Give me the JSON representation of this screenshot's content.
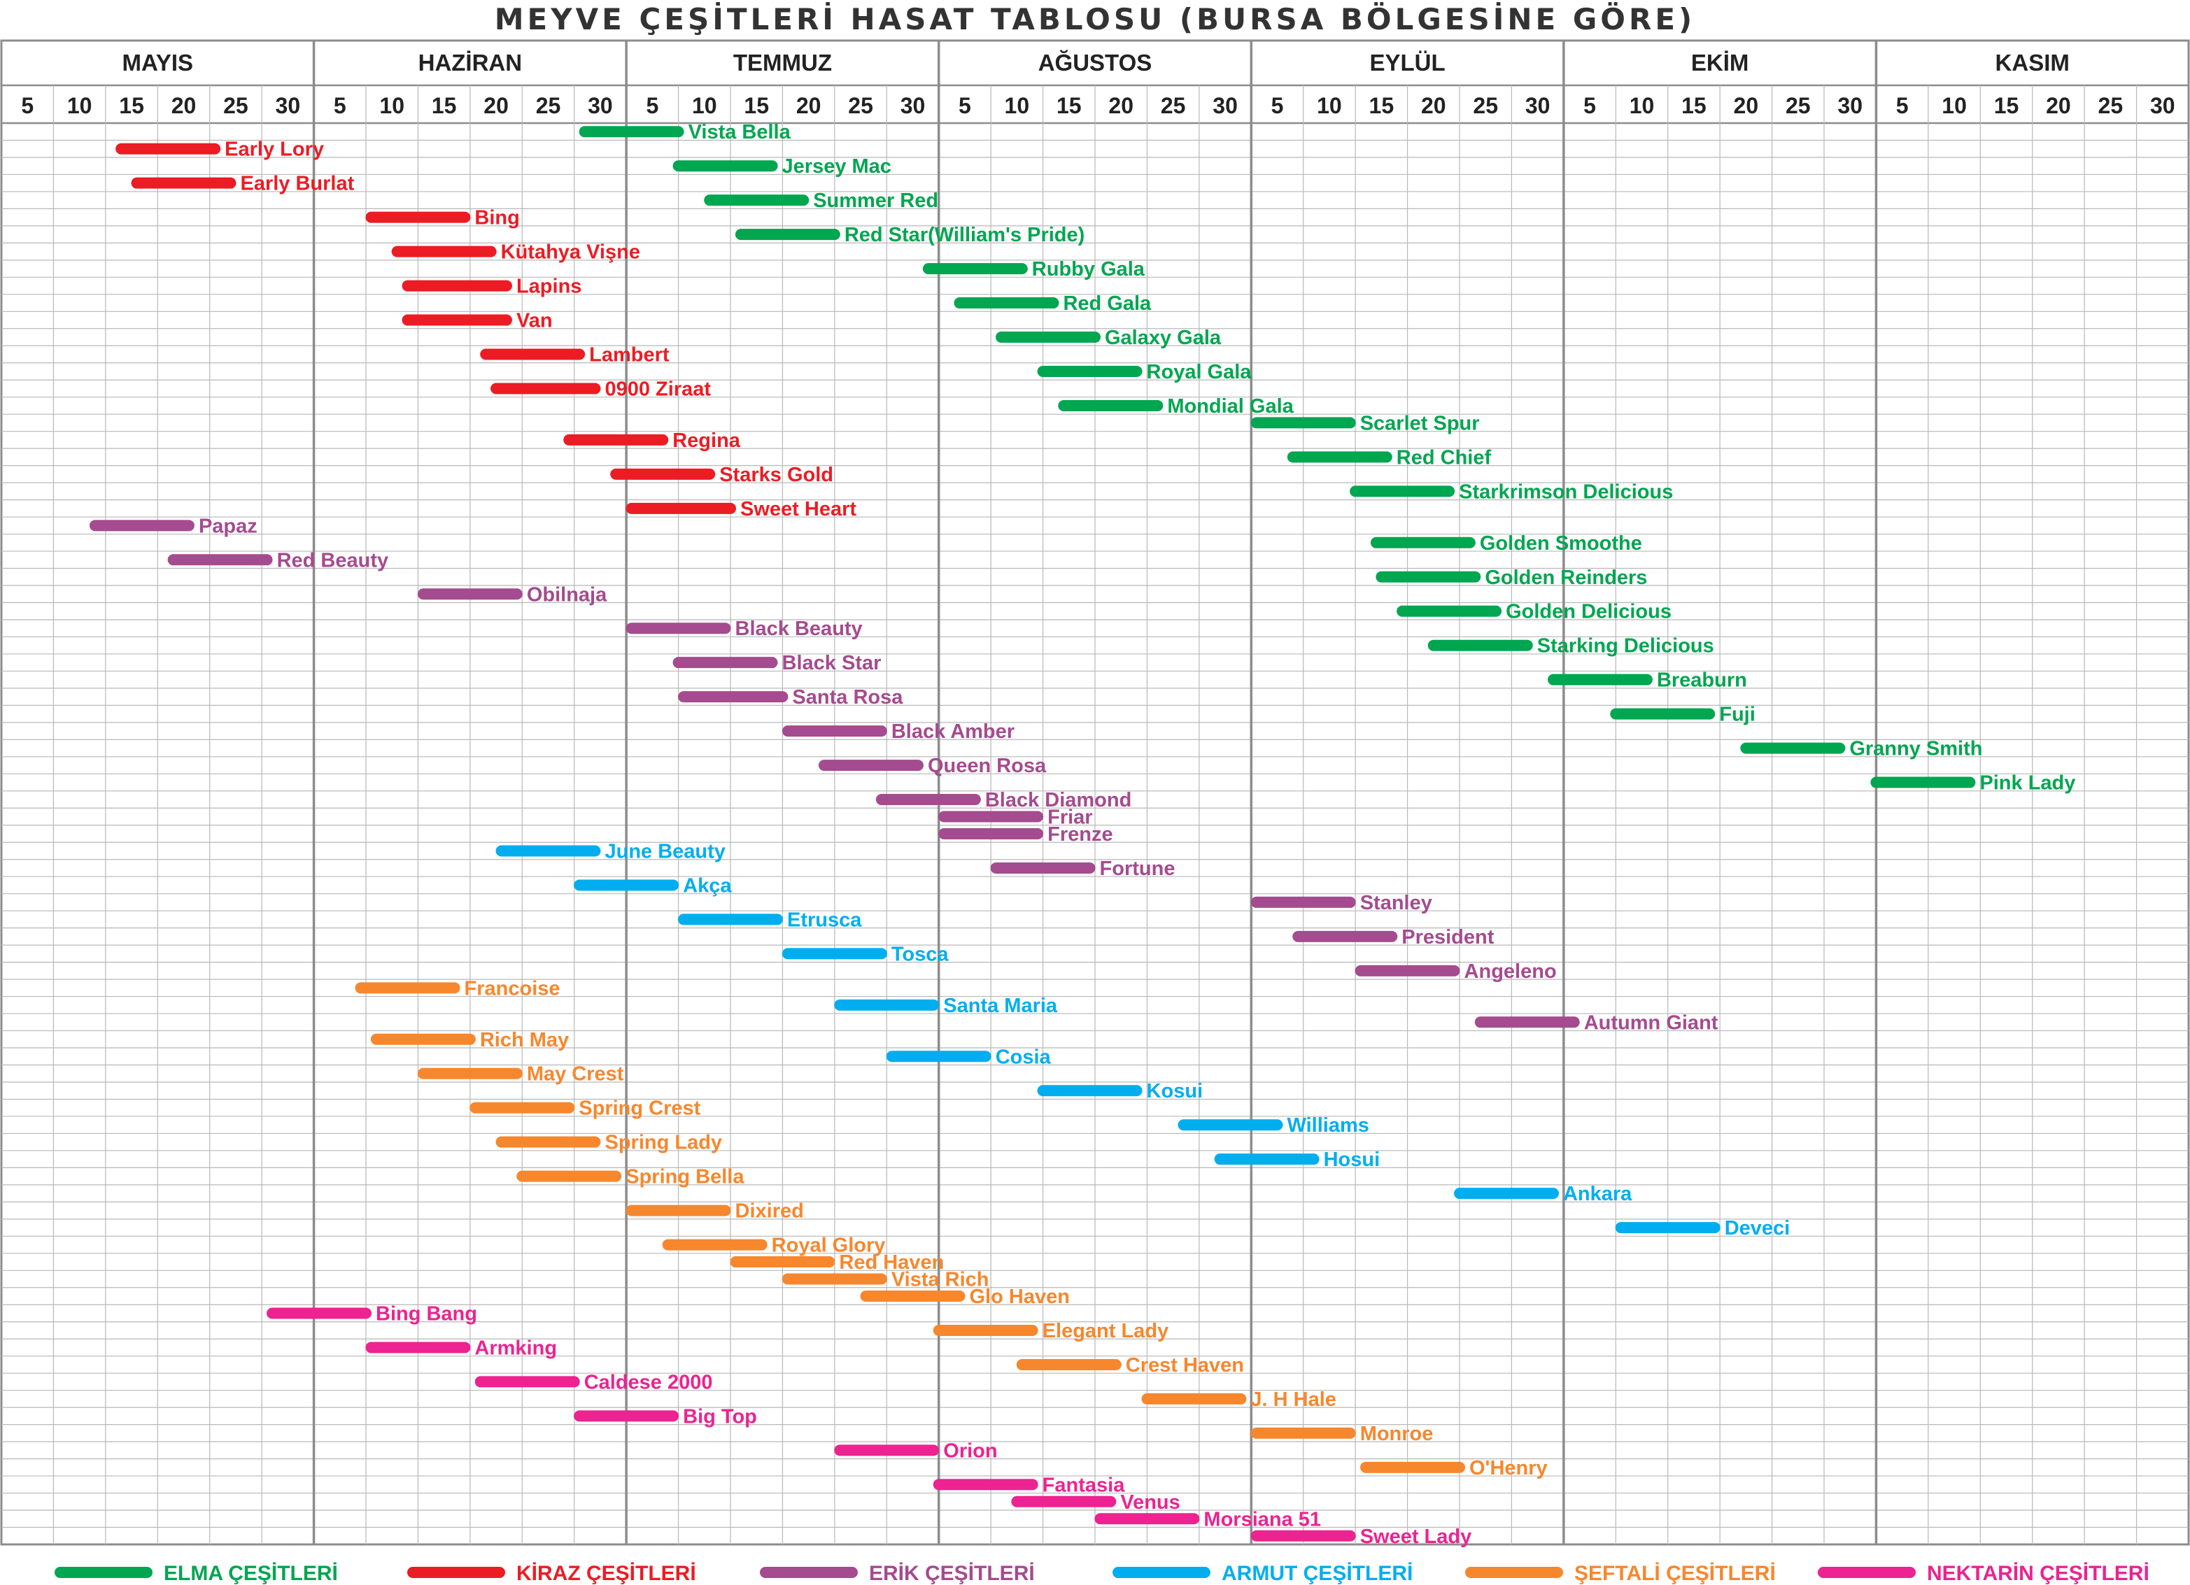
{
  "title": "MEYVE ÇEŞİTLERİ HASAT TABLOSU (BURSA BÖLGESİNE GÖRE)",
  "chart_data": {
    "type": "gantt",
    "title": "MEYVE ÇEŞİTLERİ HASAT TABLOSU (BURSA BÖLGESİNE GÖRE)",
    "months": [
      "MAYIS",
      "HAZİRAN",
      "TEMMUZ",
      "AĞUSTOS",
      "EYLÜL",
      "EKİM",
      "KASIM"
    ],
    "day_ticks": [
      "5",
      "10",
      "15",
      "20",
      "25",
      "30"
    ],
    "grid": true,
    "legend_position": "bottom",
    "categories": [
      {
        "key": "elma",
        "label": "ELMA ÇEŞİTLERİ",
        "color": "#00a650"
      },
      {
        "key": "kiraz",
        "label": "KİRAZ ÇEŞİTLERİ",
        "color": "#ec1c24"
      },
      {
        "key": "erik",
        "label": "ERİK ÇEŞİTLERİ",
        "color": "#a54b8f"
      },
      {
        "key": "armut",
        "label": "ARMUT ÇEŞİTLERİ",
        "color": "#00aeef"
      },
      {
        "key": "seftali",
        "label": "ŞEFTALİ ÇEŞİTLERİ",
        "color": "#f7872d"
      },
      {
        "key": "nektarin",
        "label": "NEKTARİN ÇEŞİTLERİ",
        "color": "#ec2391"
      }
    ],
    "varieties": [
      {
        "name": "Vista Bella",
        "cat": "elma",
        "start": 11.2,
        "end": 13.0
      },
      {
        "name": "Early Lory",
        "cat": "kiraz",
        "start": 2.3,
        "end": 4.1
      },
      {
        "name": "Jersey Mac",
        "cat": "elma",
        "start": 13.0,
        "end": 14.8
      },
      {
        "name": "Early Burlat",
        "cat": "kiraz",
        "start": 2.6,
        "end": 4.4
      },
      {
        "name": "Summer Red",
        "cat": "elma",
        "start": 13.6,
        "end": 15.4
      },
      {
        "name": "Bing",
        "cat": "kiraz",
        "start": 7.1,
        "end": 8.9
      },
      {
        "name": "Red Star(William's Pride)",
        "cat": "elma",
        "start": 14.2,
        "end": 16.0
      },
      {
        "name": "Kütahya Vişne",
        "cat": "kiraz",
        "start": 7.6,
        "end": 9.4
      },
      {
        "name": "Rubby Gala",
        "cat": "elma",
        "start": 17.8,
        "end": 19.6
      },
      {
        "name": "Lapins",
        "cat": "kiraz",
        "start": 7.8,
        "end": 9.7
      },
      {
        "name": "Red Gala",
        "cat": "elma",
        "start": 18.4,
        "end": 20.2
      },
      {
        "name": "Van",
        "cat": "kiraz",
        "start": 7.8,
        "end": 9.7
      },
      {
        "name": "Galaxy Gala",
        "cat": "elma",
        "start": 19.2,
        "end": 21.0
      },
      {
        "name": "Lambert",
        "cat": "kiraz",
        "start": 9.3,
        "end": 11.1
      },
      {
        "name": "Royal Gala",
        "cat": "elma",
        "start": 20.0,
        "end": 21.8
      },
      {
        "name": "0900 Ziraat",
        "cat": "kiraz",
        "start": 9.5,
        "end": 11.4
      },
      {
        "name": "Mondial Gala",
        "cat": "elma",
        "start": 20.4,
        "end": 22.2
      },
      {
        "name": "Scarlet Spur",
        "cat": "elma",
        "start": 24.1,
        "end": 25.9
      },
      {
        "name": "Regina",
        "cat": "kiraz",
        "start": 10.9,
        "end": 12.7
      },
      {
        "name": "Red Chief",
        "cat": "elma",
        "start": 24.8,
        "end": 26.6
      },
      {
        "name": "Starks Gold",
        "cat": "kiraz",
        "start": 11.8,
        "end": 13.6
      },
      {
        "name": "Starkrimson Delicious",
        "cat": "elma",
        "start": 26.0,
        "end": 27.8
      },
      {
        "name": "Sweet Heart",
        "cat": "kiraz",
        "start": 12.1,
        "end": 14.0
      },
      {
        "name": "Papaz",
        "cat": "erik",
        "start": 1.8,
        "end": 3.6
      },
      {
        "name": "Golden Smoothe",
        "cat": "elma",
        "start": 26.4,
        "end": 28.2
      },
      {
        "name": "Red Beauty",
        "cat": "erik",
        "start": 3.3,
        "end": 5.1
      },
      {
        "name": "Golden Reinders",
        "cat": "elma",
        "start": 26.5,
        "end": 28.3
      },
      {
        "name": "Obilnaja",
        "cat": "erik",
        "start": 8.1,
        "end": 9.9
      },
      {
        "name": "Golden Delicious",
        "cat": "elma",
        "start": 26.9,
        "end": 28.7
      },
      {
        "name": "Black Beauty",
        "cat": "erik",
        "start": 12.1,
        "end": 13.9
      },
      {
        "name": "Starking Delicious",
        "cat": "elma",
        "start": 27.5,
        "end": 29.3
      },
      {
        "name": "Black Star",
        "cat": "erik",
        "start": 13.0,
        "end": 14.8
      },
      {
        "name": "Breaburn",
        "cat": "elma",
        "start": 29.8,
        "end": 31.6
      },
      {
        "name": "Santa Rosa",
        "cat": "erik",
        "start": 13.1,
        "end": 15.0
      },
      {
        "name": "Fuji",
        "cat": "elma",
        "start": 31.0,
        "end": 32.8
      },
      {
        "name": "Black Amber",
        "cat": "erik",
        "start": 15.1,
        "end": 16.9
      },
      {
        "name": "Granny Smith",
        "cat": "elma",
        "start": 33.5,
        "end": 35.3
      },
      {
        "name": "Queen Rosa",
        "cat": "erik",
        "start": 15.8,
        "end": 17.6
      },
      {
        "name": "Pink Lady",
        "cat": "elma",
        "start": 36.0,
        "end": 37.8
      },
      {
        "name": "Black Diamond",
        "cat": "erik",
        "start": 16.9,
        "end": 18.7
      },
      {
        "name": "Friar",
        "cat": "erik",
        "start": 18.1,
        "end": 19.9
      },
      {
        "name": "Frenze",
        "cat": "erik",
        "start": 18.1,
        "end": 19.9
      },
      {
        "name": "June Beauty",
        "cat": "armut",
        "start": 9.6,
        "end": 11.4
      },
      {
        "name": "Fortune",
        "cat": "erik",
        "start": 19.1,
        "end": 20.9
      },
      {
        "name": "Akça",
        "cat": "armut",
        "start": 11.1,
        "end": 12.9
      },
      {
        "name": "Stanley",
        "cat": "erik",
        "start": 24.1,
        "end": 25.9
      },
      {
        "name": "Etrusca",
        "cat": "armut",
        "start": 13.1,
        "end": 14.9
      },
      {
        "name": "President",
        "cat": "erik",
        "start": 24.9,
        "end": 26.7
      },
      {
        "name": "Tosca",
        "cat": "armut",
        "start": 15.1,
        "end": 16.9
      },
      {
        "name": "Angeleno",
        "cat": "erik",
        "start": 26.1,
        "end": 27.9
      },
      {
        "name": "Francoise",
        "cat": "seftali",
        "start": 6.9,
        "end": 8.7
      },
      {
        "name": "Santa Maria",
        "cat": "armut",
        "start": 16.1,
        "end": 17.9
      },
      {
        "name": "Autumn Giant",
        "cat": "erik",
        "start": 28.4,
        "end": 30.2
      },
      {
        "name": "Rich May",
        "cat": "seftali",
        "start": 7.2,
        "end": 9.0
      },
      {
        "name": "Cosia",
        "cat": "armut",
        "start": 17.1,
        "end": 18.9
      },
      {
        "name": "May Crest",
        "cat": "seftali",
        "start": 8.1,
        "end": 9.9
      },
      {
        "name": "Kosui",
        "cat": "armut",
        "start": 20.0,
        "end": 21.8
      },
      {
        "name": "Spring Crest",
        "cat": "seftali",
        "start": 9.1,
        "end": 10.9
      },
      {
        "name": "Williams",
        "cat": "armut",
        "start": 22.7,
        "end": 24.5
      },
      {
        "name": "Spring Lady",
        "cat": "seftali",
        "start": 9.6,
        "end": 11.4
      },
      {
        "name": "Hosui",
        "cat": "armut",
        "start": 23.4,
        "end": 25.2
      },
      {
        "name": "Spring Bella",
        "cat": "seftali",
        "start": 10.0,
        "end": 11.8
      },
      {
        "name": "Ankara",
        "cat": "armut",
        "start": 28.0,
        "end": 29.8
      },
      {
        "name": "Dixired",
        "cat": "seftali",
        "start": 12.1,
        "end": 13.9
      },
      {
        "name": "Deveci",
        "cat": "armut",
        "start": 31.1,
        "end": 32.9
      },
      {
        "name": "Royal Glory",
        "cat": "seftali",
        "start": 12.8,
        "end": 14.6
      },
      {
        "name": "Red Haven",
        "cat": "seftali",
        "start": 14.1,
        "end": 15.9
      },
      {
        "name": "Vista Rich",
        "cat": "seftali",
        "start": 15.1,
        "end": 16.9
      },
      {
        "name": "Glo Haven",
        "cat": "seftali",
        "start": 16.6,
        "end": 18.4
      },
      {
        "name": "Bing Bang",
        "cat": "nektarin",
        "start": 5.2,
        "end": 7.0
      },
      {
        "name": "Elegant Lady",
        "cat": "seftali",
        "start": 18.0,
        "end": 19.8
      },
      {
        "name": "Armking",
        "cat": "nektarin",
        "start": 7.1,
        "end": 8.9
      },
      {
        "name": "Crest Haven",
        "cat": "seftali",
        "start": 19.6,
        "end": 21.4
      },
      {
        "name": "Caldese 2000",
        "cat": "nektarin",
        "start": 9.2,
        "end": 11.0
      },
      {
        "name": "J. H Hale",
        "cat": "seftali",
        "start": 22.0,
        "end": 23.8
      },
      {
        "name": "Big Top",
        "cat": "nektarin",
        "start": 11.1,
        "end": 12.9
      },
      {
        "name": "Monroe",
        "cat": "seftali",
        "start": 24.1,
        "end": 25.9
      },
      {
        "name": "Orion",
        "cat": "nektarin",
        "start": 16.1,
        "end": 17.9
      },
      {
        "name": "O'Henry",
        "cat": "seftali",
        "start": 26.2,
        "end": 28.0
      },
      {
        "name": "Fantasia",
        "cat": "nektarin",
        "start": 18.0,
        "end": 19.8
      },
      {
        "name": "Venus",
        "cat": "nektarin",
        "start": 19.5,
        "end": 21.3
      },
      {
        "name": "Morsiana 51",
        "cat": "nektarin",
        "start": 21.1,
        "end": 22.9
      },
      {
        "name": "Sweet Lady",
        "cat": "nektarin",
        "start": 24.1,
        "end": 25.9
      }
    ]
  }
}
